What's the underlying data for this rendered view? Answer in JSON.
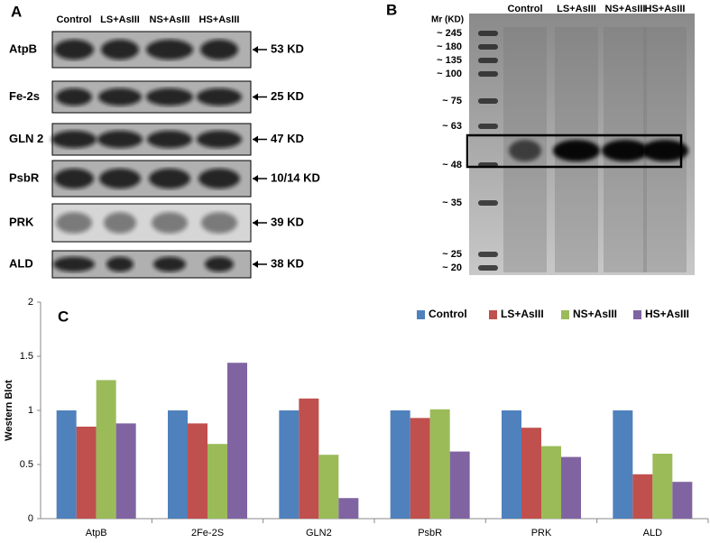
{
  "panel_a": {
    "label": "A",
    "columns": [
      "Control",
      "LS+AsIII",
      "NS+AsIII",
      "HS+AsIII"
    ],
    "rows": [
      {
        "name": "AtpB",
        "size": "53 KD"
      },
      {
        "name": "Fe-2s",
        "size": "25 KD"
      },
      {
        "name": "GLN 2",
        "size": "47 KD"
      },
      {
        "name": "PsbR",
        "size": "10/14 KD"
      },
      {
        "name": "PRK",
        "size": "39 KD"
      },
      {
        "name": "ALD",
        "size": "38 KD"
      }
    ]
  },
  "panel_b": {
    "label": "B",
    "mr_title": "Mr (KD)",
    "markers": [
      "~ 245",
      "~ 180",
      "~ 135",
      "~ 100",
      "~ 75",
      "~ 63",
      "~ 48",
      "~ 35",
      "~ 25",
      "~ 20"
    ],
    "columns": [
      "Control",
      "LS+AsIII",
      "NS+AsIII",
      "HS+AsIII"
    ]
  },
  "chart_data": {
    "type": "bar",
    "panel_label": "C",
    "y_label": "Western Blot",
    "categories": [
      "AtpB",
      "2Fe-2S",
      "GLN2",
      "PsbR",
      "PRK",
      "ALD"
    ],
    "series": [
      {
        "name": "Control",
        "color": "#4f81bd",
        "values": [
          1,
          1,
          1,
          1,
          1,
          1
        ]
      },
      {
        "name": "LS+AsIII",
        "color": "#c0504d",
        "values": [
          0.85,
          0.88,
          1.11,
          0.93,
          0.84,
          0.41
        ]
      },
      {
        "name": "NS+AsIII",
        "color": "#9bbb59",
        "values": [
          1.28,
          0.69,
          0.59,
          1.01,
          0.67,
          0.6
        ]
      },
      {
        "name": "HS+AsIII",
        "color": "#8064a2",
        "values": [
          0.88,
          1.44,
          0.19,
          0.62,
          0.57,
          0.34
        ]
      }
    ],
    "ylim": [
      0,
      2
    ],
    "yticks": [
      0,
      0.5,
      1,
      1.5,
      2
    ],
    "legend": "top-right"
  }
}
